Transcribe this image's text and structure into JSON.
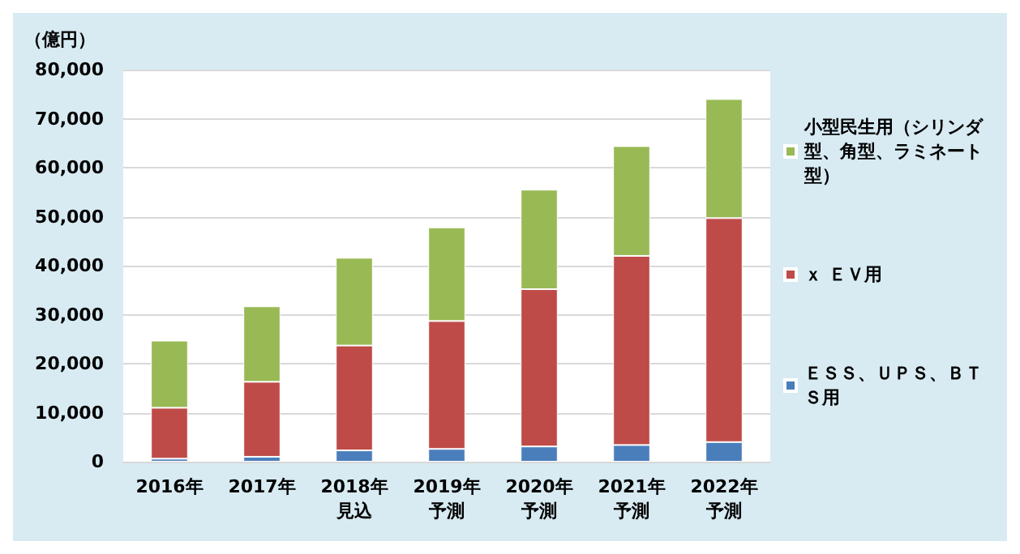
{
  "chart_data": {
    "type": "bar",
    "stacked": true,
    "ylabel": "（億円）",
    "categories": [
      "2016年",
      "2017年",
      "2018年見込",
      "2019年予測",
      "2020年予測",
      "2021年予測",
      "2022年予測"
    ],
    "series": [
      {
        "name": "ＥＳＳ、ＵＰＳ、ＢＴＳ用",
        "color": "#4a7ebb",
        "values": [
          600,
          1000,
          2300,
          2600,
          3100,
          3400,
          4000
        ]
      },
      {
        "name": "ｘ ＥＶ用",
        "color": "#be4b48",
        "values": [
          10400,
          15300,
          21400,
          26100,
          32100,
          38600,
          45700
        ]
      },
      {
        "name": "小型民生用（シリンダ型、角型、ラミネート型）",
        "color": "#98b954",
        "values": [
          13700,
          15400,
          17900,
          19100,
          20300,
          22400,
          24300
        ]
      }
    ],
    "ylim": [
      0,
      80000
    ],
    "yticks": [
      {
        "value": 0,
        "label": "0"
      },
      {
        "value": 10000,
        "label": "10,000"
      },
      {
        "value": 20000,
        "label": "20,000"
      },
      {
        "value": 30000,
        "label": "30,000"
      },
      {
        "value": 40000,
        "label": "40,000"
      },
      {
        "value": 50000,
        "label": "50,000"
      },
      {
        "value": 60000,
        "label": "60,000"
      },
      {
        "value": 70000,
        "label": "70,000"
      },
      {
        "value": 80000,
        "label": "80,000"
      }
    ],
    "grid": "y",
    "legend": "right"
  }
}
